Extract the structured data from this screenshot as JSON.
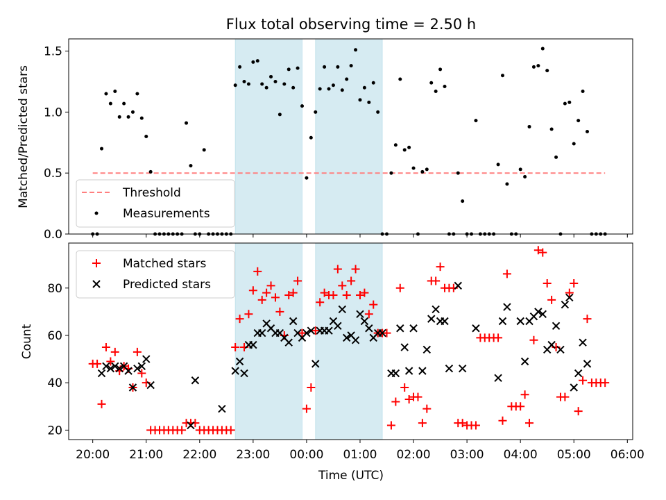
{
  "chart_data": {
    "title": "Flux total observing time = 2.50 h",
    "xlabel": "Time (UTC)",
    "x_ticks": [
      "20:00",
      "21:00",
      "22:00",
      "23:00",
      "00:00",
      "01:00",
      "02:00",
      "03:00",
      "04:00",
      "05:00",
      "06:00"
    ],
    "xlim": [
      "19:33",
      "06:06"
    ],
    "highlight_intervals": [
      [
        "22:40",
        "23:55"
      ],
      [
        "00:10",
        "01:25"
      ]
    ],
    "colors": {
      "threshold": "#ff7f7f",
      "measurements": "#000000",
      "matched": "#ff0000",
      "predicted": "#000000",
      "highlight": "#add8e6"
    },
    "panels": [
      {
        "name": "ratio",
        "type": "scatter",
        "ylabel": "Matched/Predicted stars",
        "ylim": [
          0,
          1.6
        ],
        "y_ticks": [
          "0.0",
          "0.5",
          "1.0",
          "1.5"
        ],
        "legend": {
          "position": "lower-left",
          "entries": [
            "Threshold",
            "Measurements"
          ]
        },
        "series": [
          {
            "name": "Threshold",
            "type": "line",
            "style": "dashed",
            "x": [
              "20:00",
              "05:35"
            ],
            "y": [
              0.5,
              0.5
            ]
          },
          {
            "name": "Measurements",
            "type": "scatter",
            "x": [
              "20:00",
              "20:05",
              "20:10",
              "20:15",
              "20:20",
              "20:25",
              "20:30",
              "20:35",
              "20:40",
              "20:45",
              "20:50",
              "20:55",
              "21:00",
              "21:05",
              "21:10",
              "21:15",
              "21:20",
              "21:25",
              "21:30",
              "21:35",
              "21:40",
              "21:45",
              "21:50",
              "21:55",
              "22:00",
              "22:05",
              "22:10",
              "22:15",
              "22:20",
              "22:25",
              "22:30",
              "22:35",
              "22:40",
              "22:45",
              "22:50",
              "22:55",
              "23:00",
              "23:05",
              "23:10",
              "23:15",
              "23:20",
              "23:25",
              "23:30",
              "23:35",
              "23:40",
              "23:45",
              "23:50",
              "23:55",
              "00:00",
              "00:05",
              "00:10",
              "00:15",
              "00:20",
              "00:25",
              "00:30",
              "00:35",
              "00:40",
              "00:45",
              "00:50",
              "00:55",
              "01:00",
              "01:05",
              "01:10",
              "01:15",
              "01:20",
              "01:25",
              "01:30",
              "01:35",
              "01:40",
              "01:45",
              "01:50",
              "01:55",
              "02:00",
              "02:05",
              "02:10",
              "02:15",
              "02:20",
              "02:25",
              "02:30",
              "02:35",
              "02:40",
              "02:45",
              "02:50",
              "02:55",
              "03:00",
              "03:05",
              "03:10",
              "03:15",
              "03:20",
              "03:25",
              "03:30",
              "03:35",
              "03:40",
              "03:45",
              "03:50",
              "03:55",
              "04:00",
              "04:05",
              "04:10",
              "04:15",
              "04:20",
              "04:25",
              "04:30",
              "04:35",
              "04:40",
              "04:45",
              "04:50",
              "04:55",
              "05:00",
              "05:05",
              "05:10",
              "05:15",
              "05:20",
              "05:25",
              "05:30",
              "05:35"
            ],
            "y": [
              0,
              0,
              0.7,
              1.15,
              1.07,
              1.17,
              0.96,
              1.07,
              0.96,
              1.0,
              1.15,
              0.95,
              0.8,
              0.51,
              0,
              0,
              0,
              0,
              0,
              0,
              0,
              0.91,
              0.56,
              0,
              0,
              0.69,
              0,
              0,
              0,
              0,
              0,
              0,
              1.22,
              1.37,
              1.25,
              1.23,
              1.41,
              1.42,
              1.23,
              1.2,
              1.29,
              1.25,
              0.98,
              1.23,
              1.35,
              1.2,
              1.36,
              1.05,
              0.46,
              0.79,
              1.0,
              1.19,
              1.37,
              1.19,
              1.22,
              1.37,
              1.18,
              1.27,
              1.38,
              1.51,
              1.1,
              1.2,
              1.08,
              1.24,
              1.0,
              0,
              0,
              0.5,
              0.73,
              1.27,
              0.69,
              0.71,
              0.54,
              0,
              0.51,
              0.53,
              1.24,
              1.17,
              1.35,
              1.21,
              0,
              0,
              0.5,
              0.27,
              0,
              0,
              0.93,
              0,
              0,
              0,
              0,
              0.57,
              1.3,
              0.41,
              0,
              0,
              0.53,
              0.47,
              0.88,
              1.37,
              1.38,
              1.52,
              1.34,
              0.86,
              0.63,
              0,
              1.07,
              1.08,
              0.74,
              0.93,
              1.17,
              0.84,
              0,
              0,
              0,
              0
            ]
          }
        ]
      },
      {
        "name": "counts",
        "type": "scatter",
        "ylabel": "Count",
        "ylim": [
          16,
          99
        ],
        "y_ticks": [
          "20",
          "40",
          "60",
          "80"
        ],
        "legend": {
          "position": "upper-left",
          "entries": [
            "Matched stars",
            "Predicted stars"
          ]
        },
        "series": [
          {
            "name": "Matched stars",
            "marker": "plus",
            "x": [
              "20:00",
              "20:05",
              "20:10",
              "20:15",
              "20:20",
              "20:25",
              "20:30",
              "20:35",
              "20:40",
              "20:45",
              "20:50",
              "20:55",
              "21:00",
              "21:05",
              "21:10",
              "21:15",
              "21:20",
              "21:25",
              "21:30",
              "21:35",
              "21:40",
              "21:45",
              "21:50",
              "21:55",
              "22:00",
              "22:05",
              "22:10",
              "22:15",
              "22:20",
              "22:25",
              "22:30",
              "22:35",
              "22:40",
              "22:45",
              "22:50",
              "22:55",
              "23:00",
              "23:05",
              "23:10",
              "23:15",
              "23:20",
              "23:25",
              "23:30",
              "23:35",
              "23:40",
              "23:45",
              "23:50",
              "23:55",
              "00:00",
              "00:05",
              "00:10",
              "00:15",
              "00:20",
              "00:25",
              "00:30",
              "00:35",
              "00:40",
              "00:45",
              "00:50",
              "00:55",
              "01:00",
              "01:05",
              "01:10",
              "01:15",
              "01:20",
              "01:25",
              "01:30",
              "01:35",
              "01:40",
              "01:45",
              "01:50",
              "01:55",
              "02:00",
              "02:05",
              "02:10",
              "02:15",
              "02:20",
              "02:25",
              "02:30",
              "02:35",
              "02:40",
              "02:45",
              "02:50",
              "02:55",
              "03:00",
              "03:05",
              "03:10",
              "03:15",
              "03:20",
              "03:25",
              "03:30",
              "03:35",
              "03:40",
              "03:45",
              "03:50",
              "03:55",
              "04:00",
              "04:05",
              "04:10",
              "04:15",
              "04:20",
              "04:25",
              "04:30",
              "04:35",
              "04:40",
              "04:45",
              "04:50",
              "04:55",
              "05:00",
              "05:05",
              "05:10",
              "05:15",
              "05:20",
              "05:25",
              "05:30",
              "05:35"
            ],
            "y": [
              48,
              48,
              31,
              55,
              49,
              53,
              45,
              47,
              46,
              38,
              53,
              44,
              40,
              20,
              20,
              20,
              20,
              20,
              20,
              20,
              20,
              23,
              23,
              23,
              20,
              20,
              20,
              20,
              20,
              20,
              20,
              20,
              55,
              67,
              55,
              69,
              79,
              87,
              75,
              78,
              81,
              76,
              70,
              60,
              77,
              78,
              83,
              61,
              29,
              38,
              62,
              74,
              78,
              77,
              77,
              88,
              81,
              77,
              83,
              88,
              77,
              78,
              69,
              73,
              61,
              61,
              61,
              22,
              32,
              80,
              38,
              33,
              34,
              34,
              23,
              29,
              83,
              83,
              89,
              80,
              80,
              80,
              23,
              23,
              22,
              22,
              22,
              59,
              59,
              59,
              59,
              59,
              24,
              86,
              30,
              30,
              30,
              35,
              23,
              58,
              96,
              95,
              82,
              75,
              55,
              34,
              34,
              78,
              82,
              28,
              41,
              67,
              40,
              40,
              40,
              40
            ]
          },
          {
            "name": "Predicted stars",
            "marker": "x",
            "x": [
              "20:10",
              "20:15",
              "20:20",
              "20:25",
              "20:30",
              "20:35",
              "20:40",
              "20:45",
              "20:50",
              "20:55",
              "21:00",
              "21:05",
              "21:50",
              "21:55",
              "22:25",
              "22:40",
              "22:45",
              "22:50",
              "22:55",
              "23:00",
              "23:05",
              "23:10",
              "23:15",
              "23:20",
              "23:25",
              "23:30",
              "23:35",
              "23:40",
              "23:45",
              "23:50",
              "23:55",
              "00:00",
              "00:05",
              "00:10",
              "00:15",
              "00:20",
              "00:25",
              "00:30",
              "00:35",
              "00:40",
              "00:45",
              "00:50",
              "00:55",
              "01:00",
              "01:05",
              "01:10",
              "01:15",
              "01:20",
              "01:25",
              "01:35",
              "01:40",
              "01:45",
              "01:50",
              "01:55",
              "02:00",
              "02:10",
              "02:15",
              "02:20",
              "02:25",
              "02:30",
              "02:35",
              "02:40",
              "02:50",
              "02:55",
              "03:10",
              "03:35",
              "03:40",
              "03:45",
              "04:00",
              "04:05",
              "04:10",
              "04:15",
              "04:20",
              "04:25",
              "04:30",
              "04:35",
              "04:40",
              "04:45",
              "04:50",
              "04:55",
              "05:00",
              "05:05",
              "05:10",
              "05:15"
            ],
            "y": [
              44,
              47,
              46,
              47,
              46,
              47,
              45,
              38,
              46,
              47,
              50,
              39,
              22,
              41,
              29,
              45,
              49,
              44,
              56,
              56,
              61,
              61,
              65,
              63,
              61,
              61,
              59,
              57,
              66,
              61,
              59,
              61,
              62,
              48,
              62,
              62,
              62,
              66,
              64,
              71,
              59,
              60,
              58,
              69,
              66,
              63,
              59,
              61,
              61,
              44,
              44,
              63,
              55,
              45,
              63,
              45,
              54,
              67,
              71,
              66,
              66,
              46,
              81,
              46,
              63,
              42,
              66,
              72,
              66,
              49,
              66,
              68,
              70,
              69,
              54,
              56,
              64,
              54,
              73,
              76,
              38,
              44,
              57,
              48
            ]
          }
        ]
      }
    ]
  }
}
